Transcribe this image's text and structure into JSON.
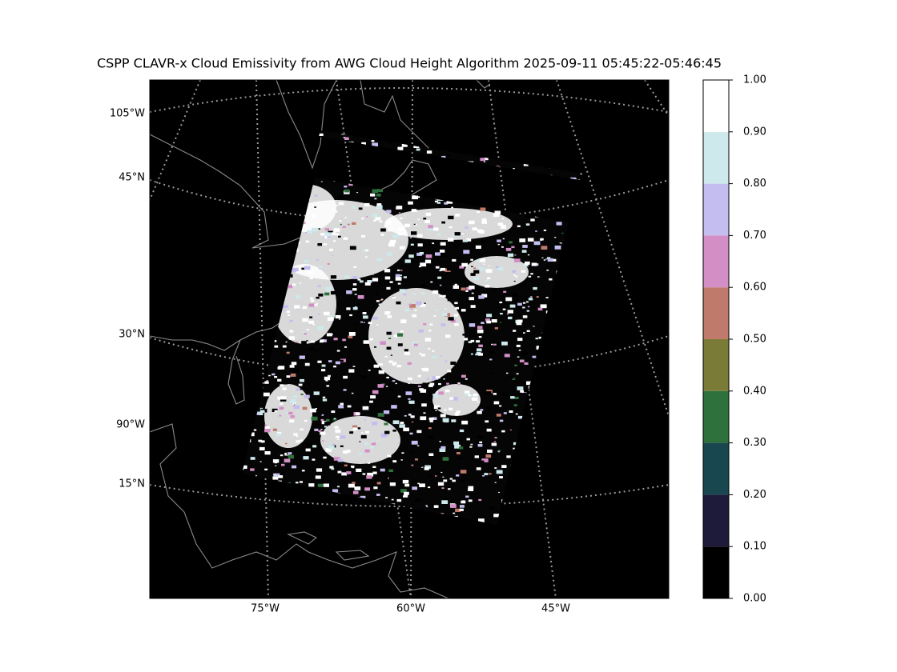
{
  "title": "CSPP CLAVR-x Cloud Emissivity from AWG Cloud Height Algorithm 2025-09-11 05:45:22-05:46:45",
  "map": {
    "lon_labels": [
      "75°W",
      "60°W",
      "45°W"
    ],
    "lat_labels": [
      "105°W",
      "45°N",
      "30°N",
      "90°W",
      "15°N"
    ]
  },
  "colorbar": {
    "lim": [
      0,
      1
    ],
    "ticks": [
      {
        "value": 0,
        "label": "0.00"
      },
      {
        "value": 0.1,
        "label": "0.10"
      },
      {
        "value": 0.2,
        "label": "0.20"
      },
      {
        "value": 0.3,
        "label": "0.30"
      },
      {
        "value": 0.4,
        "label": "0.40"
      },
      {
        "value": 0.5,
        "label": "0.50"
      },
      {
        "value": 0.6,
        "label": "0.60"
      },
      {
        "value": 0.7,
        "label": "0.70"
      },
      {
        "value": 0.8,
        "label": "0.80"
      },
      {
        "value": 0.9,
        "label": "0.90"
      },
      {
        "value": 1,
        "label": "1.00"
      }
    ],
    "colors": [
      "#000000",
      "#1e1a3a",
      "#18474f",
      "#2e713c",
      "#7a7b37",
      "#c07a6c",
      "#d38ec6",
      "#c4bdf0",
      "#cde9ec",
      "#ffffff"
    ]
  }
}
